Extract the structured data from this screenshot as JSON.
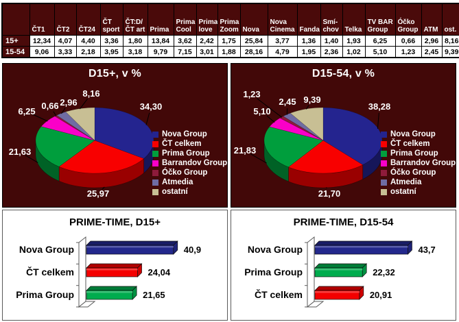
{
  "colors": {
    "panel_maroon": "#420808",
    "table_header_bg": "#4A0A0A",
    "table_text": "#000000",
    "pie_label_text": "#FFFFFF"
  },
  "chart_data": [
    {
      "type": "table",
      "columns": [
        "ČT1",
        "ČT2",
        "ČT24",
        "ČT sport",
        "ČT:D/ ČT art",
        "Prima",
        "Prima Cool",
        "Prima love",
        "Prima Zoom",
        "Nova",
        "Nova Cinema",
        "Fanda",
        "Smí- chov",
        "Telka",
        "TV BAR Group",
        "Óčko Group",
        "ATM",
        "ost."
      ],
      "rows": [
        {
          "label": "15+",
          "values": [
            "12,34",
            "4,07",
            "4,40",
            "3,36",
            "1,80",
            "13,84",
            "3,62",
            "2,42",
            "1,75",
            "25,84",
            "3,77",
            "1,36",
            "1,40",
            "1,93",
            "6,25",
            "0,66",
            "2,96",
            "8,16"
          ]
        },
        {
          "label": "15-54",
          "values": [
            "9,06",
            "3,33",
            "2,18",
            "3,95",
            "3,18",
            "9,79",
            "7,15",
            "3,01",
            "1,88",
            "28,16",
            "4,79",
            "1,95",
            "2,36",
            "1,02",
            "5,10",
            "1,23",
            "2,45",
            "9,39"
          ]
        }
      ]
    },
    {
      "type": "pie",
      "title": "D15+, v %",
      "labels": [
        "Nova Group",
        "ČT celkem",
        "Prima Group",
        "Barrandov Group",
        "Óčko Group",
        "Atmedia",
        "ostatní"
      ],
      "values": [
        34.3,
        25.97,
        21.63,
        6.25,
        0.66,
        2.96,
        8.16
      ],
      "values_text": [
        "34,30",
        "25,97",
        "21,63",
        "6,25",
        "0,66",
        "2,96",
        "8,16"
      ],
      "colors": [
        "#24248F",
        "#F80000",
        "#009E3D",
        "#FA00C8",
        "#8E1B3B",
        "#6F6CA3",
        "#C8BF94"
      ],
      "legend_position": "right"
    },
    {
      "type": "pie",
      "title": "D15-54, v %",
      "labels": [
        "Nova Group",
        "ČT celkem",
        "Prima Group",
        "Barrandov Group",
        "Óčko Group",
        "Atmedia",
        "ostatní"
      ],
      "values": [
        38.28,
        21.7,
        21.83,
        5.1,
        1.23,
        2.45,
        9.39
      ],
      "values_text": [
        "38,28",
        "21,70",
        "21,83",
        "5,10",
        "1,23",
        "2,45",
        "9,39"
      ],
      "colors": [
        "#24248F",
        "#F80000",
        "#009E3D",
        "#FA00C8",
        "#8E1B3B",
        "#6F6CA3",
        "#C8BF94"
      ],
      "legend_position": "right"
    },
    {
      "type": "bar",
      "orientation": "horizontal",
      "title": "PRIME-TIME, D15+",
      "categories": [
        "Nova Group",
        "ČT celkem",
        "Prima Group"
      ],
      "values": [
        40.9,
        24.04,
        21.65
      ],
      "values_text": [
        "40,9",
        "24,04",
        "21,65"
      ],
      "colors": [
        "#23288C",
        "#F40000",
        "#00AC4E"
      ],
      "xlim": [
        0,
        50
      ]
    },
    {
      "type": "bar",
      "orientation": "horizontal",
      "title": "PRIME-TIME, D15-54",
      "categories": [
        "Nova Group",
        "Prima Group",
        "ČT celkem"
      ],
      "values": [
        43.7,
        22.32,
        20.91
      ],
      "values_text": [
        "43,7",
        "22,32",
        "20,91"
      ],
      "colors": [
        "#23288C",
        "#00AC4E",
        "#F40000"
      ],
      "xlim": [
        0,
        50
      ]
    }
  ]
}
